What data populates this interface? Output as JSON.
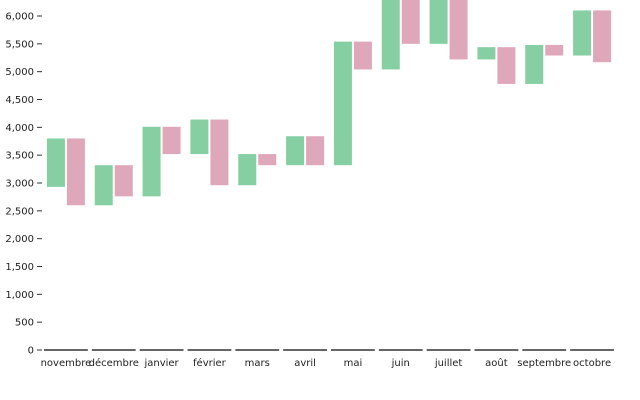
{
  "chart_data": {
    "type": "bar",
    "subtype": "paired-floating-range",
    "title": "",
    "xlabel": "",
    "ylabel": "",
    "ylim": [
      0,
      6300
    ],
    "yticks": [
      0,
      500,
      1000,
      1500,
      2000,
      2500,
      3000,
      3500,
      4000,
      4500,
      5000,
      5500,
      6000
    ],
    "ytick_labels": [
      "0",
      "500",
      "1,000",
      "1,500",
      "2,000",
      "2,500",
      "3,000",
      "3,500",
      "4,000",
      "4,500",
      "5,000",
      "5,500",
      "6,000"
    ],
    "grid": false,
    "legend": "none",
    "colors": {
      "green": "#86cfa3",
      "pink": "#dfa8ba"
    },
    "categories": [
      "novembre",
      "décembre",
      "janvier",
      "février",
      "mars",
      "avril",
      "mai",
      "juin",
      "juillet",
      "août",
      "septembre",
      "octobre"
    ],
    "series": [
      {
        "color_key": "green",
        "ranges": [
          [
            2930,
            3800
          ],
          [
            2600,
            3320
          ],
          [
            2760,
            4010
          ],
          [
            3520,
            4140
          ],
          [
            2960,
            3520
          ],
          [
            3320,
            3840
          ],
          [
            3320,
            5540
          ],
          [
            5040,
            6340
          ],
          [
            5500,
            6340
          ],
          [
            5220,
            5440
          ],
          [
            4780,
            5480
          ],
          [
            5290,
            6100
          ]
        ]
      },
      {
        "color_key": "pink",
        "ranges": [
          [
            2600,
            3800
          ],
          [
            2760,
            3320
          ],
          [
            3520,
            4010
          ],
          [
            2960,
            4140
          ],
          [
            3320,
            3520
          ],
          [
            3320,
            3840
          ],
          [
            5040,
            5540
          ],
          [
            5500,
            6340
          ],
          [
            5220,
            6340
          ],
          [
            4780,
            5440
          ],
          [
            5290,
            5480
          ],
          [
            5170,
            6100
          ]
        ]
      }
    ]
  }
}
